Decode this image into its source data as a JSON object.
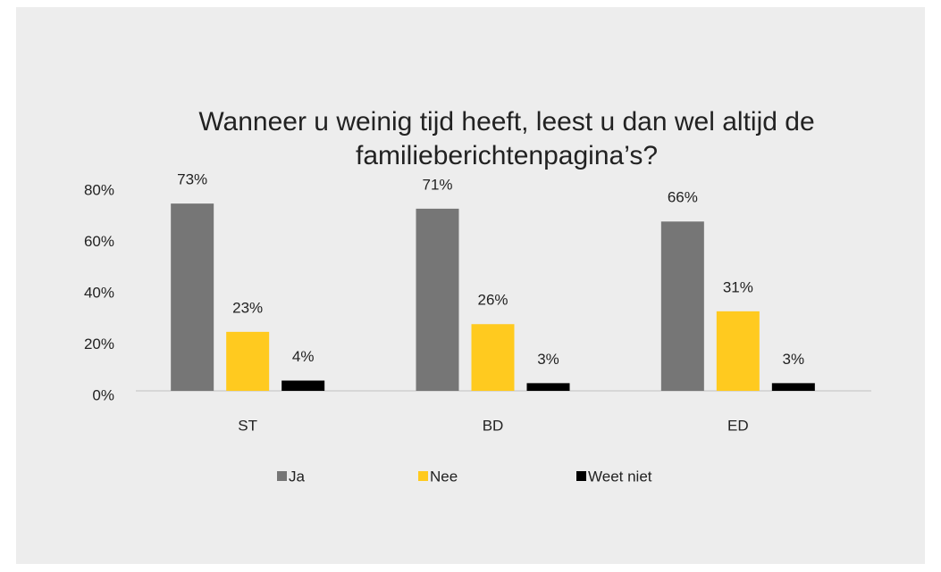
{
  "chart_data": {
    "type": "bar",
    "title": "Wanneer u weinig tijd heeft, leest u dan wel altijd de familieberichtenpagina’s?",
    "categories": [
      "ST",
      "BD",
      "ED"
    ],
    "series": [
      {
        "name": "Ja",
        "color": "#767676",
        "values": [
          73,
          71,
          66
        ],
        "value_labels": [
          "73%",
          "71%",
          "66%"
        ]
      },
      {
        "name": "Nee",
        "color": "#ffca1f",
        "values": [
          23,
          26,
          31
        ],
        "value_labels": [
          "23%",
          "26%",
          "31%"
        ]
      },
      {
        "name": "Weet niet",
        "color": "#000000",
        "values": [
          4,
          3,
          3
        ],
        "value_labels": [
          "4%",
          "3%",
          "3%"
        ]
      }
    ],
    "ylim": [
      0,
      80
    ],
    "yticks": [
      {
        "value": 0,
        "label": "0%"
      },
      {
        "value": 20,
        "label": "20%"
      },
      {
        "value": 40,
        "label": "40%"
      },
      {
        "value": 60,
        "label": "60%"
      },
      {
        "value": 80,
        "label": "80%"
      }
    ],
    "grid": false,
    "legend": "bottom"
  }
}
